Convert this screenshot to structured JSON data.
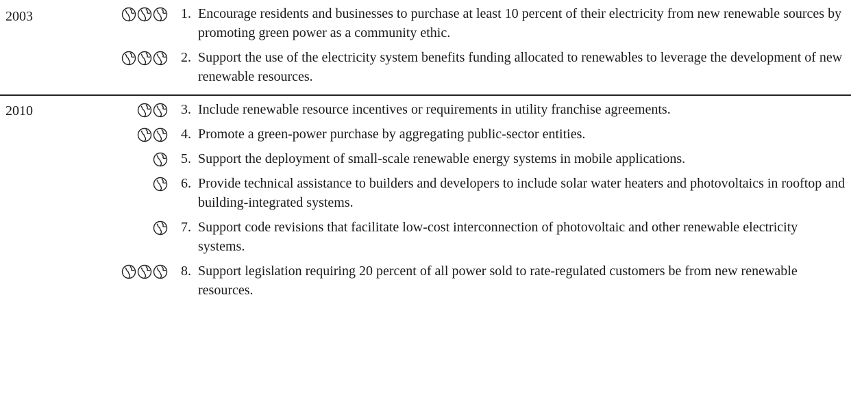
{
  "groups": [
    {
      "year": "2003",
      "items": [
        {
          "rating": 3,
          "number": "1.",
          "text": "Encourage residents and businesses to purchase at least 10 percent of their electricity from new renewable sources by promoting green power as a community ethic."
        },
        {
          "rating": 3,
          "number": "2.",
          "text": "Support the use of the electricity system benefits funding allocated to renewables to leverage the development of new renewable resources."
        }
      ]
    },
    {
      "year": "2010",
      "items": [
        {
          "rating": 2,
          "number": "3.",
          "text": "Include renewable resource incentives or requirements in utility franchise agreements."
        },
        {
          "rating": 2,
          "number": "4.",
          "text": "Promote a green-power purchase by aggregating public-sector entities."
        },
        {
          "rating": 1,
          "number": "5.",
          "text": "Support the deployment of small-scale renewable energy systems in mobile applications."
        },
        {
          "rating": 1,
          "number": "6.",
          "text": "Provide technical assistance to builders and developers to include solar water heaters and photovoltaics in rooftop and building-integrated systems."
        },
        {
          "rating": 1,
          "number": "7.",
          "text": "Support code revisions that facilitate low-cost interconnection of photovoltaic and other renewable electricity systems."
        },
        {
          "rating": 3,
          "number": "8.",
          "text": "Support legislation requiring 20 percent of all power sold to rate-regulated customers be from new renewable resources."
        }
      ]
    }
  ]
}
